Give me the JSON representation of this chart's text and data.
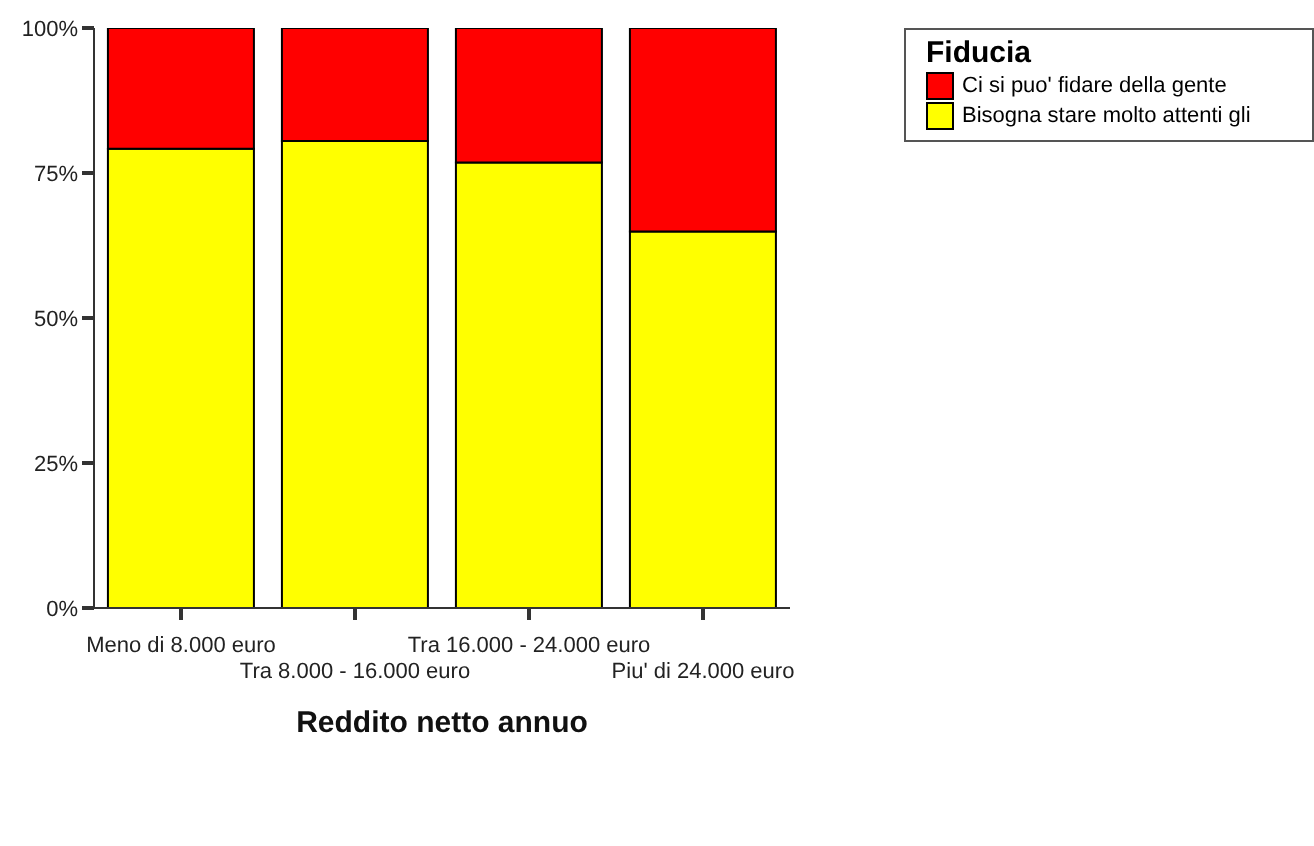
{
  "chart_data": {
    "type": "bar",
    "stacked": true,
    "xlabel": "Reddito netto annuo",
    "legend_title": "Fiducia",
    "legend": "top right",
    "categories": [
      "Meno di 8.000 euro",
      "Tra 8.000 - 16.000 euro",
      "Tra 16.000 - 24.000 euro",
      "Piu' di 24.000 euro"
    ],
    "series": [
      {
        "name": "Bisogna stare molto attenti gli",
        "color": "#ffff00",
        "values": [
          79.2,
          80.5,
          76.8,
          64.9
        ]
      },
      {
        "name": "Ci si puo' fidare della gente",
        "color": "#ff0000",
        "values": [
          20.8,
          19.5,
          23.2,
          35.1
        ]
      }
    ],
    "ylim": [
      0,
      100
    ],
    "yticks": [
      {
        "value": 0,
        "label": "0%"
      },
      {
        "value": 25,
        "label": "25%"
      },
      {
        "value": 50,
        "label": "50%"
      },
      {
        "value": 75,
        "label": "75%"
      },
      {
        "value": 100,
        "label": "100%"
      }
    ],
    "grid": false
  }
}
